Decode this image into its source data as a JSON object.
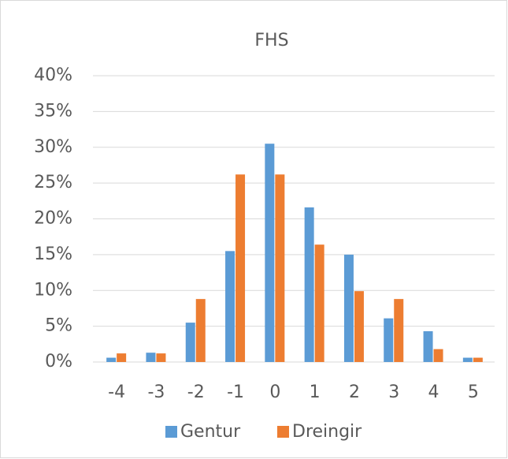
{
  "chart_data": {
    "type": "bar",
    "title": "FHS",
    "categories": [
      "-4",
      "-3",
      "-2",
      "-1",
      "0",
      "1",
      "2",
      "3",
      "4",
      "5"
    ],
    "series": [
      {
        "name": "Gentur",
        "color": "#5b9bd5",
        "values": [
          0.6,
          1.3,
          5.5,
          15.5,
          30.5,
          21.6,
          15,
          6.1,
          4.3,
          0.6
        ]
      },
      {
        "name": "Dreingir",
        "color": "#ed7d31",
        "values": [
          1.2,
          1.2,
          8.8,
          26.2,
          26.2,
          16.4,
          9.9,
          8.8,
          1.8,
          0.6
        ]
      }
    ],
    "ylim": [
      0,
      40
    ],
    "yticks": [
      {
        "value": 0,
        "label": "0%"
      },
      {
        "value": 5,
        "label": "5%"
      },
      {
        "value": 10,
        "label": "10%"
      },
      {
        "value": 15,
        "label": "15%"
      },
      {
        "value": 20,
        "label": "20%"
      },
      {
        "value": 25,
        "label": "25%"
      },
      {
        "value": 30,
        "label": "30%"
      },
      {
        "value": 35,
        "label": "35%"
      },
      {
        "value": 40,
        "label": "40%"
      }
    ],
    "grid": true,
    "legend": "bottom"
  }
}
